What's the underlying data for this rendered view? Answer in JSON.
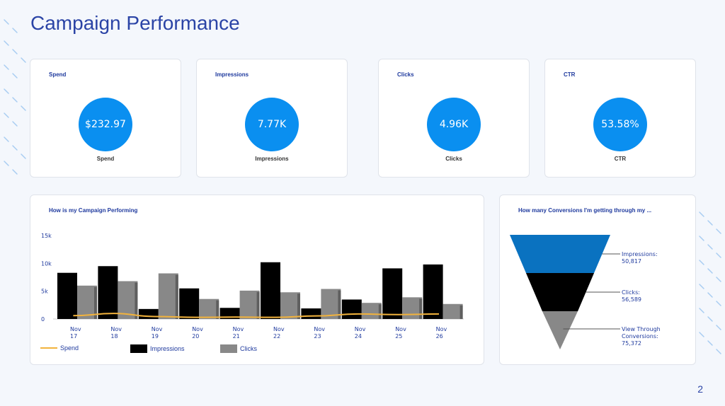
{
  "page": {
    "title": "Campaign Performance",
    "page_number": "2"
  },
  "kpis": [
    {
      "label": "Spend",
      "value": "$232.97",
      "caption": "Spend"
    },
    {
      "label": "Impressions",
      "value": "7.77K",
      "caption": "Impressions"
    },
    {
      "label": "Clicks",
      "value": "4.96K",
      "caption": "Clicks"
    },
    {
      "label": "CTR",
      "value": "53.58%",
      "caption": "CTR"
    }
  ],
  "performance_chart": {
    "title": "How is my Campaign Performing",
    "legend": {
      "spend": "Spend",
      "impressions": "Impressions",
      "clicks": "Clicks"
    }
  },
  "funnel_chart": {
    "title": "How many Conversions I'm getting through my ..."
  },
  "colors": {
    "accent": "#2b44a6",
    "kpi_circle": "#0a8ff0",
    "impressions_bar": "#000000",
    "clicks_bar": "#888888",
    "spend_line": "#f2b33d",
    "funnel_top": "#0a72c0"
  },
  "chart_data": [
    {
      "type": "bar",
      "title": "How is my Campaign Performing",
      "categories": [
        "Nov 17",
        "Nov 18",
        "Nov 19",
        "Nov 20",
        "Nov 21",
        "Nov 22",
        "Nov 23",
        "Nov 24",
        "Nov 25",
        "Nov 26"
      ],
      "yticks": [
        "0",
        "5k",
        "10k",
        "15k"
      ],
      "ylim": [
        0,
        15000
      ],
      "grid": false,
      "legend_position": "bottom-left",
      "series": [
        {
          "name": "Impressions",
          "type": "bar",
          "values": [
            8300,
            9500,
            1800,
            5500,
            2000,
            10200,
            1900,
            3500,
            9100,
            9800
          ]
        },
        {
          "name": "Clicks",
          "type": "bar",
          "values": [
            6000,
            6800,
            8200,
            3600,
            5100,
            4800,
            5400,
            2900,
            3900,
            2700
          ]
        },
        {
          "name": "Spend",
          "type": "line",
          "values": [
            600,
            1000,
            450,
            300,
            350,
            300,
            550,
            900,
            800,
            900
          ]
        }
      ]
    },
    {
      "type": "funnel",
      "title": "How many Conversions I'm getting through my ...",
      "stages": [
        {
          "label": "Impressions:",
          "value": "50,817"
        },
        {
          "label": "Clicks:",
          "value": "56,589"
        },
        {
          "label": "View Through Conversions:",
          "value": "75,372"
        }
      ]
    }
  ]
}
